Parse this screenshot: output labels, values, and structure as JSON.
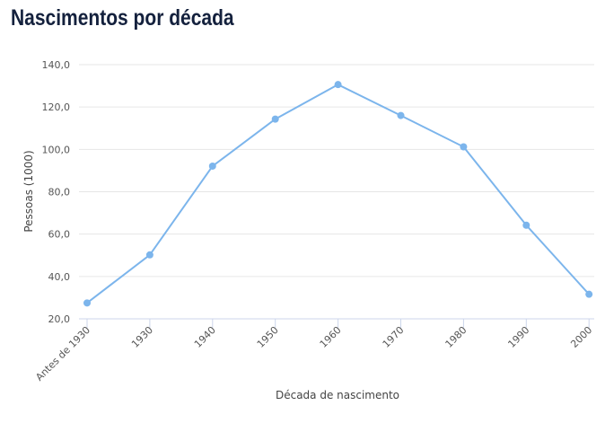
{
  "chart_data": {
    "type": "line",
    "title": "Nascimentos por década",
    "xlabel": "Década de nascimento",
    "ylabel": "Pessoas (1000)",
    "categories": [
      "Antes de 1930",
      "1930",
      "1940",
      "1950",
      "1960",
      "1970",
      "1980",
      "1990",
      "2000"
    ],
    "series": [
      {
        "values": [
          27.5,
          50.2,
          92.1,
          114.3,
          130.6,
          116.0,
          101.2,
          64.2,
          31.6
        ]
      }
    ],
    "ylim": [
      20,
      140
    ],
    "yticks": [
      "20,0",
      "40,0",
      "60,0",
      "80,0",
      "100,0",
      "120,0",
      "140,0"
    ],
    "grid": true,
    "legend": "none",
    "colors": {
      "line": "#7cb5ec",
      "grid": "#e6e6e6",
      "axis": "#ccd6eb",
      "title": "#14213d"
    }
  }
}
